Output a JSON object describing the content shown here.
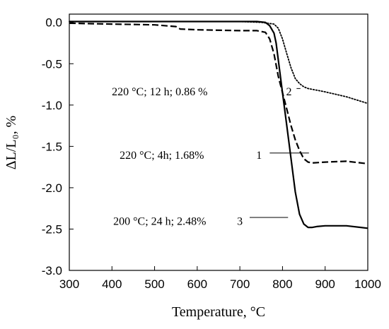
{
  "chart_data": {
    "type": "line",
    "xlabel": "Temperature, °C",
    "ylabel": "ΔL/L₀, %",
    "xlim": [
      300,
      1000
    ],
    "ylim": [
      -3.0,
      0.1
    ],
    "x_ticks": [
      300,
      400,
      500,
      600,
      700,
      800,
      900,
      1000
    ],
    "y_ticks": [
      0.0,
      -0.5,
      -1.0,
      -1.5,
      -2.0,
      -2.5,
      -3.0
    ],
    "x_tick_labels": [
      "300",
      "400",
      "500",
      "600",
      "700",
      "800",
      "900",
      "1000"
    ],
    "y_tick_labels": [
      "0.0",
      "-0.5",
      "-1.0",
      "-1.5",
      "-2.0",
      "-2.5",
      "-3.0"
    ],
    "grid": false,
    "series": [
      {
        "style": "dotted",
        "x": [
          300,
          400,
          500,
          600,
          700,
          750,
          780,
          790,
          800,
          810,
          820,
          830,
          840,
          850,
          860,
          870,
          880,
          900,
          950,
          1000
        ],
        "y": [
          0.01,
          0.01,
          0.01,
          0.01,
          0.01,
          0.0,
          -0.02,
          -0.07,
          -0.2,
          -0.38,
          -0.55,
          -0.68,
          -0.74,
          -0.78,
          -0.8,
          -0.81,
          -0.82,
          -0.84,
          -0.9,
          -0.98
        ]
      },
      {
        "style": "dashed",
        "x": [
          300,
          400,
          500,
          550,
          560,
          600,
          700,
          740,
          760,
          770,
          780,
          790,
          800,
          810,
          820,
          830,
          840,
          850,
          860,
          870,
          900,
          950,
          1000
        ],
        "y": [
          -0.01,
          -0.02,
          -0.03,
          -0.05,
          -0.08,
          -0.09,
          -0.1,
          -0.1,
          -0.12,
          -0.2,
          -0.38,
          -0.65,
          -0.85,
          -1.05,
          -1.25,
          -1.42,
          -1.55,
          -1.65,
          -1.69,
          -1.7,
          -1.69,
          -1.68,
          -1.71
        ]
      },
      {
        "style": "solid",
        "x": [
          300,
          400,
          500,
          600,
          700,
          740,
          760,
          770,
          780,
          785,
          790,
          800,
          810,
          820,
          830,
          840,
          850,
          860,
          870,
          880,
          900,
          950,
          1000
        ],
        "y": [
          0.01,
          0.01,
          0.01,
          0.01,
          0.01,
          0.01,
          0.0,
          -0.04,
          -0.13,
          -0.25,
          -0.45,
          -0.85,
          -1.25,
          -1.65,
          -2.05,
          -2.32,
          -2.44,
          -2.48,
          -2.48,
          -2.47,
          -2.46,
          -2.46,
          -2.49
        ]
      }
    ],
    "annotations": [
      {
        "text": "220 °C; 12 h; 0.86 %",
        "number": "2",
        "series_index": 0,
        "label_x": 512,
        "label_y": -0.83,
        "number_x": 815,
        "number_y": -0.83,
        "leader_from_x": 833,
        "leader_y": -0.8,
        "leader_to_x": 842
      },
      {
        "text": "220 °C; 4h; 1.68%",
        "number": "1",
        "series_index": 1,
        "label_x": 517,
        "label_y": -1.6,
        "number_x": 745,
        "number_y": -1.6,
        "leader_from_x": 770,
        "leader_y": -1.58,
        "leader_to_x": 862
      },
      {
        "text": "200 °C; 24 h; 2.48%",
        "number": "3",
        "series_index": 2,
        "label_x": 512,
        "label_y": -2.4,
        "number_x": 700,
        "number_y": -2.4,
        "leader_from_x": 723,
        "leader_y": -2.36,
        "leader_to_x": 813
      }
    ]
  }
}
